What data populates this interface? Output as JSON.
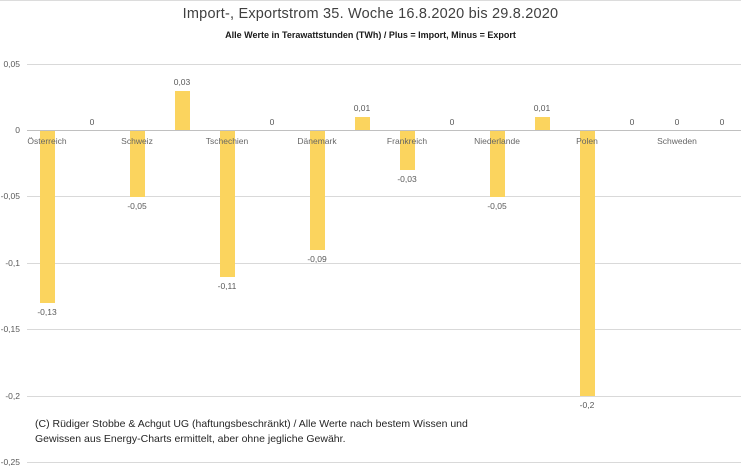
{
  "title": "Import-, Exportstrom 35. Woche 16.8.2020 bis 29.8.2020",
  "subtitle": "Alle Werte in Terawattstunden (TWh) / Plus = Import, Minus = Export",
  "footer": {
    "line1": "(C) Rüdiger Stobbe & Achgut UG (haftungsbeschränkt) / Alle Werte nach bestem Wissen und",
    "line2": "Gewissen aus Energy-Charts ermittelt, aber ohne jegliche Gewähr."
  },
  "colors": {
    "bar": "#fbd45e",
    "grid": "#d9d9d9",
    "axis": "#c0c0c0",
    "label_text": "#595959",
    "background": "#ffffff"
  },
  "chart_data": {
    "type": "bar",
    "title": "Import-, Exportstrom 35. Woche 16.8.2020 bis 29.8.2020",
    "subtitle": "Alle Werte in Terawattstunden (TWh) / Plus = Import, Minus = Export",
    "unit": "TWh",
    "decimal_separator": ",",
    "grid": true,
    "legend": "none",
    "ylim": [
      -0.25,
      0.05
    ],
    "ytick_step": 0.05,
    "yticks": [
      0.05,
      0,
      -0.05,
      -0.1,
      -0.15,
      -0.2,
      -0.25
    ],
    "ytick_labels": [
      "0,05",
      "0",
      "-0,05",
      "-0,1",
      "-0,15",
      "-0,2",
      "-0,25"
    ],
    "categories": [
      "Österreich",
      "Schweiz",
      "Tschechien",
      "Dänemark",
      "Frankreich",
      "Niederlande",
      "Polen",
      "Schweden"
    ],
    "values": [
      [
        -0.13,
        0
      ],
      [
        -0.05,
        0.03
      ],
      [
        -0.11,
        0
      ],
      [
        -0.09,
        0.01
      ],
      [
        -0.03,
        0
      ],
      [
        -0.05,
        0.01
      ],
      [
        -0.2,
        0
      ],
      [
        0,
        0
      ]
    ],
    "data_labels": [
      [
        "-0,13",
        "0"
      ],
      [
        "-0,05",
        "0,03"
      ],
      [
        "-0,11",
        "0"
      ],
      [
        "-0,09",
        "0,01"
      ],
      [
        "-0,03",
        "0"
      ],
      [
        "-0,05",
        "0,01"
      ],
      [
        "-0,2",
        "0"
      ],
      [
        "0",
        "0"
      ]
    ],
    "bar_color": "#fbd45e"
  }
}
